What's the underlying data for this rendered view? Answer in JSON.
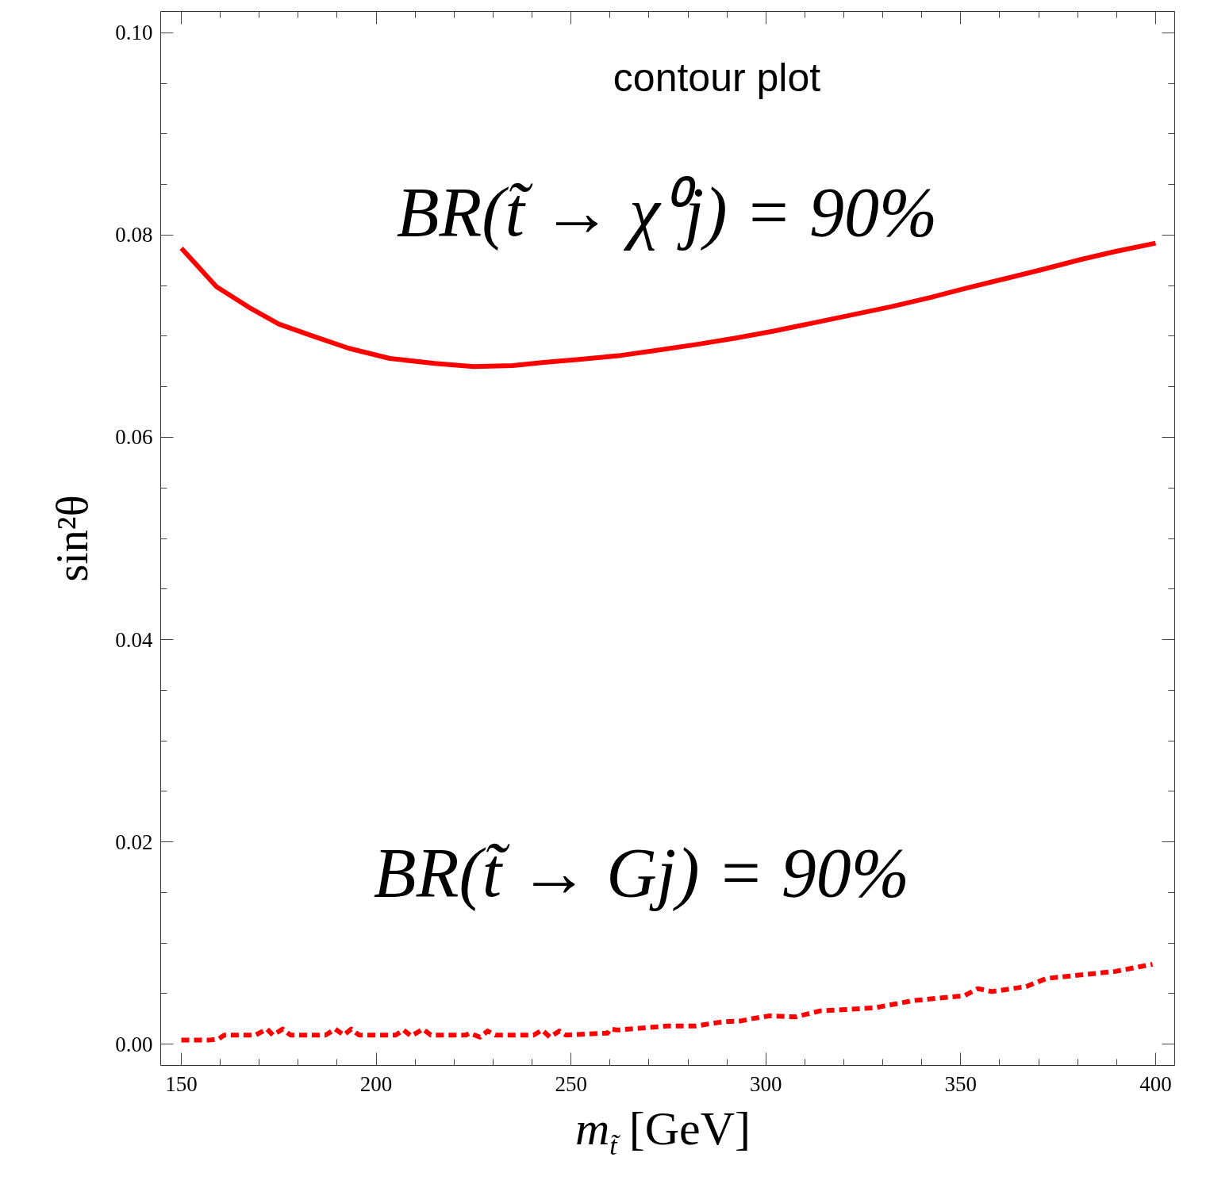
{
  "chart_data": {
    "type": "line",
    "xlabel": "m$_{t̃}$ [GeV]",
    "ylabel": "sin²θ",
    "annotations": [
      "contour plot",
      "BR(t̃ → χ⁰j) = 90%",
      "BR(t̃ → Gj) = 90%"
    ],
    "xlim": [
      144.7,
      404.9
    ],
    "ylim": [
      -0.0021,
      0.1021
    ],
    "xticks": [
      150,
      200,
      250,
      300,
      350,
      400
    ],
    "yticks": [
      {
        "value": 0,
        "label": "0.00"
      },
      0.02,
      0.04,
      0.06,
      0.08,
      {
        "value": 0.1,
        "label": "0.10"
      }
    ],
    "grid": false,
    "legend": false,
    "series": [
      {
        "color": "#ff0000",
        "line_style": "solid",
        "x": [
          150,
          159,
          168,
          175,
          183.8,
          193,
          203.5,
          215,
          225,
          235,
          243,
          252,
          262.8,
          272,
          282.5,
          292,
          302,
          312,
          322,
          332,
          342,
          351,
          361.5,
          371,
          381,
          390,
          400
        ],
        "values": [
          0.0787,
          0.0749,
          0.0727,
          0.0712,
          0.07,
          0.0688,
          0.0678,
          0.0673,
          0.067,
          0.0671,
          0.0674,
          0.0677,
          0.0681,
          0.0686,
          0.0692,
          0.0698,
          0.0705,
          0.0713,
          0.0721,
          0.0729,
          0.0738,
          0.0747,
          0.0757,
          0.0766,
          0.0776,
          0.0784,
          0.0792
        ]
      },
      {
        "color": "#ff0000",
        "line_style": "dashed",
        "x": [
          150,
          157,
          159.5,
          161,
          169,
          172,
          173.5,
          176,
          178,
          187,
          189.5,
          191.7,
          193.6,
          195.6,
          205,
          207,
          209,
          212,
          214,
          223,
          224,
          226.6,
          228.6,
          230.6,
          240.4,
          242.6,
          244.6,
          247,
          248.7,
          259.4,
          260,
          262,
          274.6,
          282,
          288.6,
          293.6,
          296,
          300.9,
          307.6,
          314,
          319.4,
          328,
          337.6,
          351,
          354.4,
          358,
          366.8,
          372,
          389.7,
          399.2
        ],
        "values": [
          0.0004,
          0.0004,
          0.0005,
          0.0009,
          0.0009,
          0.0015,
          0.0009,
          0.0015,
          0.0009,
          0.0009,
          0.0015,
          0.0009,
          0.0015,
          0.0009,
          0.0009,
          0.0014,
          0.0008,
          0.0015,
          0.0009,
          0.0009,
          0.0011,
          0.0007,
          0.0013,
          0.0009,
          0.0009,
          0.0014,
          0.0007,
          0.0013,
          0.0009,
          0.0011,
          0.0015,
          0.0014,
          0.0018,
          0.0018,
          0.0022,
          0.0023,
          0.0025,
          0.0028,
          0.0027,
          0.0033,
          0.0034,
          0.0036,
          0.0043,
          0.0048,
          0.0055,
          0.0052,
          0.0057,
          0.0065,
          0.0072,
          0.0079
        ]
      }
    ]
  }
}
